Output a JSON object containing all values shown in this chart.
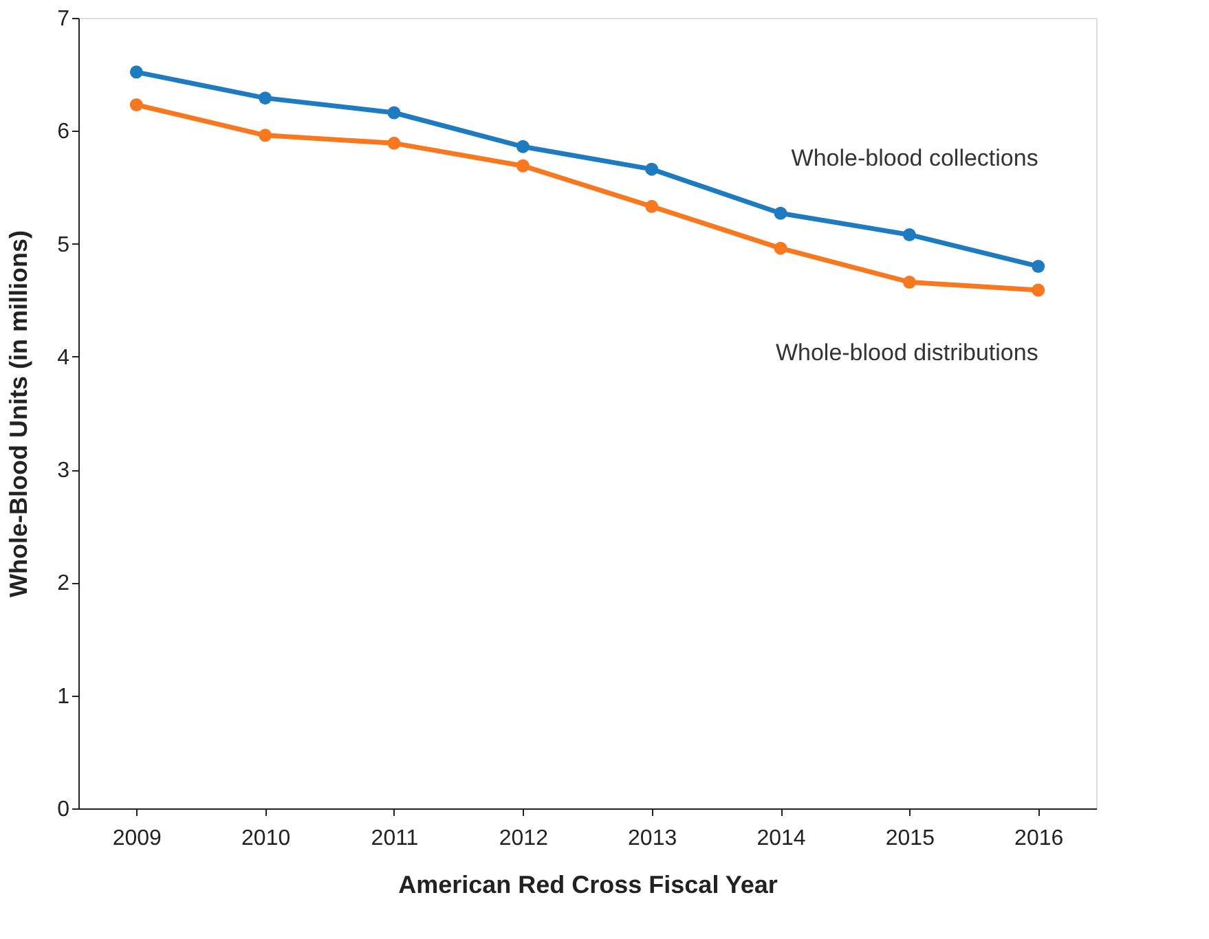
{
  "chart_data": {
    "type": "line",
    "xlabel": "American Red Cross Fiscal Year",
    "ylabel": "Whole-Blood Units (in millions)",
    "x": [
      2009,
      2010,
      2011,
      2012,
      2013,
      2014,
      2015,
      2016
    ],
    "series": [
      {
        "name": "Whole-blood collections",
        "color": "#1f7bbf",
        "values": [
          6.52,
          6.29,
          6.16,
          5.86,
          5.66,
          5.27,
          5.08,
          4.8
        ]
      },
      {
        "name": "Whole-blood distributions",
        "color": "#f7781e",
        "values": [
          6.23,
          5.96,
          5.89,
          5.69,
          5.33,
          4.96,
          4.66,
          4.59
        ]
      }
    ],
    "xlim": [
      2008.55,
      2016.45
    ],
    "xticks": [
      2009,
      2010,
      2011,
      2012,
      2013,
      2014,
      2015,
      2016
    ],
    "ylim": [
      0,
      7
    ],
    "yticks": [
      0,
      1,
      2,
      3,
      4,
      5,
      6,
      7
    ],
    "grid": false,
    "legend": false,
    "marker": "circle",
    "line_style": "solid"
  }
}
